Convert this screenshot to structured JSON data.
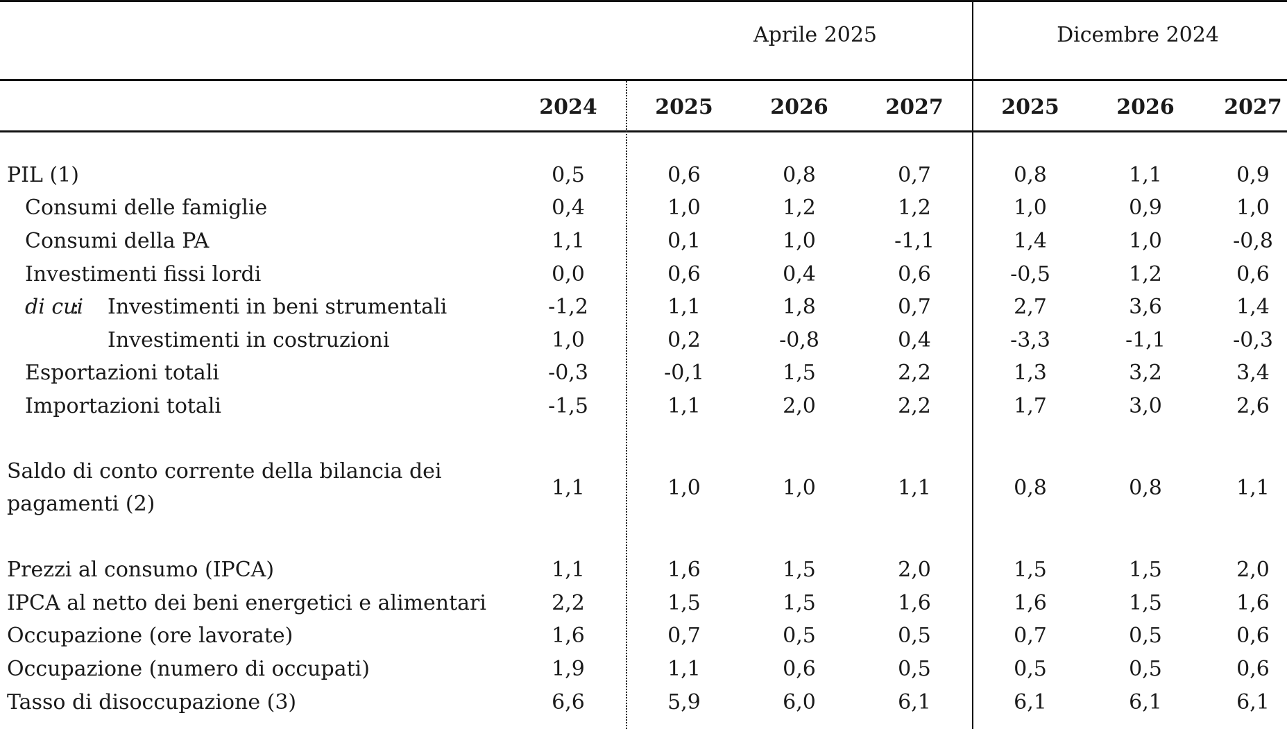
{
  "header": {
    "groups": [
      "Aprile 2025",
      "Dicembre 2024"
    ],
    "years": [
      "2024",
      "2025",
      "2026",
      "2027",
      "2025",
      "2026",
      "2027"
    ]
  },
  "rows": [
    {
      "label": "PIL (1)",
      "values": [
        "0,5",
        "0,6",
        "0,8",
        "0,7",
        "0,8",
        "1,1",
        "0,9"
      ]
    },
    {
      "label": "Consumi delle famiglie",
      "values": [
        "0,4",
        "1,0",
        "1,2",
        "1,2",
        "1,0",
        "0,9",
        "1,0"
      ]
    },
    {
      "label": "Consumi della PA",
      "values": [
        "1,1",
        "0,1",
        "1,0",
        "-1,1",
        "1,4",
        "1,0",
        "-0,8"
      ]
    },
    {
      "label": "Investimenti fissi lordi",
      "values": [
        "0,0",
        "0,6",
        "0,4",
        "0,6",
        "-0,5",
        "1,2",
        "0,6"
      ]
    },
    {
      "prefix": "di cui",
      "colon": ":",
      "label": "Investimenti in beni strumentali",
      "values": [
        "-1,2",
        "1,1",
        "1,8",
        "0,7",
        "2,7",
        "3,6",
        "1,4"
      ]
    },
    {
      "label": "Investimenti in costruzioni",
      "values": [
        "1,0",
        "0,2",
        "-0,8",
        "0,4",
        "-3,3",
        "-1,1",
        "-0,3"
      ]
    },
    {
      "label": "Esportazioni totali",
      "values": [
        "-0,3",
        "-0,1",
        "1,5",
        "2,2",
        "1,3",
        "3,2",
        "3,4"
      ]
    },
    {
      "label": "Importazioni totali",
      "values": [
        "-1,5",
        "1,1",
        "2,0",
        "2,2",
        "1,7",
        "3,0",
        "2,6"
      ]
    },
    {
      "label_line1": "Saldo di conto corrente della bilancia dei",
      "label_line2": "pagamenti (2)",
      "values": [
        "1,1",
        "1,0",
        "1,0",
        "1,1",
        "0,8",
        "0,8",
        "1,1"
      ]
    },
    {
      "label": "Prezzi al consumo (IPCA)",
      "values": [
        "1,1",
        "1,6",
        "1,5",
        "2,0",
        "1,5",
        "1,5",
        "2,0"
      ]
    },
    {
      "label": "IPCA al netto dei beni energetici e alimentari",
      "values": [
        "2,2",
        "1,5",
        "1,5",
        "1,6",
        "1,6",
        "1,5",
        "1,6"
      ]
    },
    {
      "label": "Occupazione (ore lavorate)",
      "values": [
        "1,6",
        "0,7",
        "0,5",
        "0,5",
        "0,7",
        "0,5",
        "0,6"
      ]
    },
    {
      "label": "Occupazione (numero di occupati)",
      "values": [
        "1,9",
        "1,1",
        "0,6",
        "0,5",
        "0,5",
        "0,5",
        "0,6"
      ]
    },
    {
      "label": "Tasso di disoccupazione (3)",
      "values": [
        "6,6",
        "5,9",
        "6,0",
        "6,1",
        "6,1",
        "6,1",
        "6,1"
      ]
    }
  ]
}
